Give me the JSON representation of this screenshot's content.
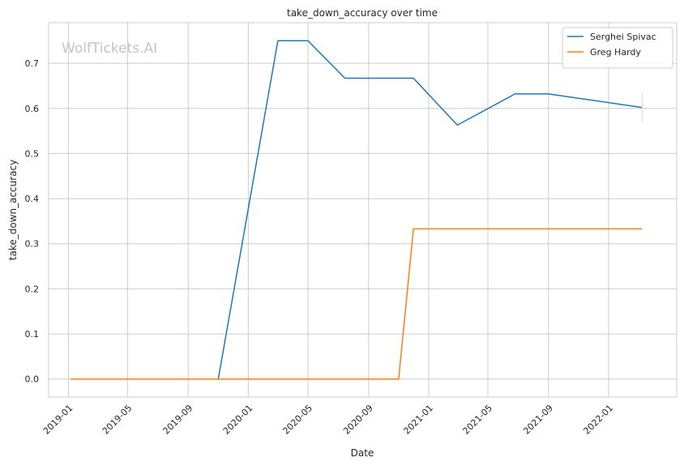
{
  "chart_data": {
    "type": "line",
    "title": "take_down_accuracy over time",
    "xlabel": "Date",
    "ylabel": "take_down_accuracy",
    "watermark": "WolfTickets.AI",
    "xlim": [
      "2018-11-22",
      "2022-05-19"
    ],
    "ylim": [
      -0.04,
      0.79
    ],
    "x_ticks": [
      "2019-01",
      "2019-05",
      "2019-09",
      "2020-01",
      "2020-05",
      "2020-09",
      "2021-01",
      "2021-05",
      "2021-09",
      "2022-01"
    ],
    "y_ticks": [
      "0.0",
      "0.1",
      "0.2",
      "0.3",
      "0.4",
      "0.5",
      "0.6",
      "0.7"
    ],
    "grid": true,
    "legend_position": "top-right",
    "series": [
      {
        "name": "Serghei Spivac",
        "color": "#1f77b4",
        "points": [
          {
            "x": "2019-05-01",
            "y": 0.0
          },
          {
            "x": "2019-11-01",
            "y": 0.0
          },
          {
            "x": "2020-03-01",
            "y": 0.75
          },
          {
            "x": "2020-05-01",
            "y": 0.75
          },
          {
            "x": "2020-07-15",
            "y": 0.667
          },
          {
            "x": "2020-12-01",
            "y": 0.667
          },
          {
            "x": "2021-02-28",
            "y": 0.563
          },
          {
            "x": "2021-06-25",
            "y": 0.632
          },
          {
            "x": "2021-09-01",
            "y": 0.632
          },
          {
            "x": "2022-03-10",
            "y": 0.602
          }
        ],
        "error_bar": {
          "x": "2022-03-10",
          "low": 0.57,
          "high": 0.635
        }
      },
      {
        "name": "Greg Hardy",
        "color": "#ff7f0e",
        "points": [
          {
            "x": "2019-01-05",
            "y": 0.0
          },
          {
            "x": "2020-11-01",
            "y": 0.0
          },
          {
            "x": "2020-12-01",
            "y": 0.333
          },
          {
            "x": "2022-03-10",
            "y": 0.333
          }
        ]
      }
    ]
  }
}
